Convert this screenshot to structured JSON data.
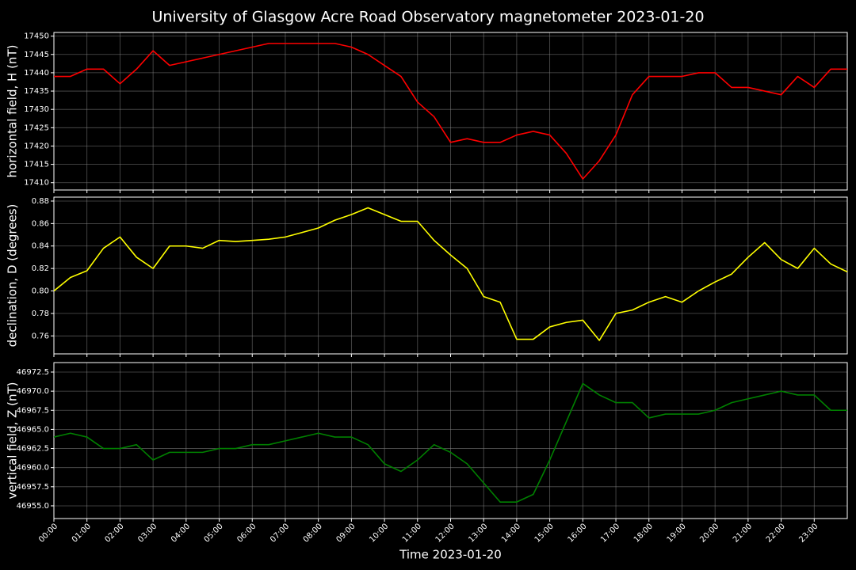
{
  "chart_data": [
    {
      "type": "line",
      "title": "University of Glasgow Acre Road Observatory magnetometer 2023-01-20",
      "ylabel": "horizontal field, H (nT)",
      "color": "#ff0000",
      "x": [
        0,
        0.5,
        1,
        1.5,
        2,
        2.5,
        3,
        3.5,
        4,
        4.5,
        5,
        5.5,
        6,
        6.5,
        7,
        7.5,
        8,
        8.5,
        9,
        9.5,
        10,
        10.5,
        11,
        11.5,
        12,
        12.5,
        13,
        13.5,
        14,
        14.5,
        15,
        15.5,
        16,
        16.5,
        17,
        17.5,
        18,
        18.5,
        19,
        19.5,
        20,
        20.5,
        21,
        21.5,
        22,
        22.5,
        23,
        23.5,
        24
      ],
      "values": [
        17439,
        17439,
        17441,
        17441,
        17437,
        17441,
        17446,
        17442,
        17443,
        17444,
        17445,
        17446,
        17447,
        17448,
        17448,
        17448,
        17448,
        17448,
        17447,
        17445,
        17442,
        17439,
        17432,
        17428,
        17421,
        17422,
        17421,
        17421,
        17423,
        17424,
        17423,
        17418,
        17411,
        17416,
        17423,
        17434,
        17439,
        17439,
        17439,
        17440,
        17440,
        17436,
        17436,
        17435,
        17434,
        17439,
        17436,
        17441,
        17441
      ],
      "xlim": [
        0,
        24
      ],
      "ylim": [
        17408,
        17451
      ],
      "yticks": [
        17410,
        17415,
        17420,
        17425,
        17430,
        17435,
        17440,
        17445,
        17450
      ],
      "grid": true
    },
    {
      "type": "line",
      "ylabel": "declination, D (degrees)",
      "color": "#ffff00",
      "x": [
        0,
        0.5,
        1,
        1.5,
        2,
        2.5,
        3,
        3.5,
        4,
        4.5,
        5,
        5.5,
        6,
        6.5,
        7,
        7.5,
        8,
        8.5,
        9,
        9.5,
        10,
        10.5,
        11,
        11.5,
        12,
        12.5,
        13,
        13.5,
        14,
        14.5,
        15,
        15.5,
        16,
        16.5,
        17,
        17.5,
        18,
        18.5,
        19,
        19.5,
        20,
        20.5,
        21,
        21.5,
        22,
        22.5,
        23,
        23.5,
        24
      ],
      "values": [
        0.8,
        0.812,
        0.818,
        0.838,
        0.848,
        0.83,
        0.82,
        0.84,
        0.84,
        0.838,
        0.845,
        0.844,
        0.845,
        0.846,
        0.848,
        0.852,
        0.856,
        0.863,
        0.868,
        0.874,
        0.868,
        0.862,
        0.862,
        0.845,
        0.832,
        0.82,
        0.795,
        0.79,
        0.757,
        0.757,
        0.768,
        0.772,
        0.774,
        0.756,
        0.78,
        0.783,
        0.79,
        0.795,
        0.79,
        0.8,
        0.808,
        0.815,
        0.83,
        0.843,
        0.828,
        0.82,
        0.838,
        0.824,
        0.817
      ],
      "xlim": [
        0,
        24
      ],
      "ylim": [
        0.744,
        0.8835
      ],
      "yticks": [
        0.76,
        0.78,
        {
          "value": 0.8,
          "label": "0.80"
        },
        0.82,
        0.84,
        0.86,
        0.88
      ],
      "grid": true
    },
    {
      "type": "line",
      "ylabel": "vertical field, Z (nT)",
      "xlabel": "Time 2023-01-20",
      "color": "#008000",
      "x": [
        0,
        0.5,
        1,
        1.5,
        2,
        2.5,
        3,
        3.5,
        4,
        4.5,
        5,
        5.5,
        6,
        6.5,
        7,
        7.5,
        8,
        8.5,
        9,
        9.5,
        10,
        10.5,
        11,
        11.5,
        12,
        12.5,
        13,
        13.5,
        14,
        14.5,
        15,
        15.5,
        16,
        16.5,
        17,
        17.5,
        18,
        18.5,
        19,
        19.5,
        20,
        20.5,
        21,
        21.5,
        22,
        22.5,
        23,
        23.5,
        24
      ],
      "values": [
        46964,
        46964.5,
        46964,
        46962.5,
        46962.5,
        46963,
        46961,
        46962,
        46962,
        46962,
        46962.5,
        46962.5,
        46963,
        46963,
        46963.5,
        46964,
        46964.5,
        46964,
        46964,
        46963,
        46960.5,
        46959.5,
        46961,
        46963,
        46962,
        46960.5,
        46958,
        46955.5,
        46955.5,
        46956.5,
        46961,
        46966,
        46971,
        46969.5,
        46968.5,
        46968.5,
        46966.5,
        46967,
        46967,
        46967,
        46967.5,
        46968.5,
        46969,
        46969.5,
        46970,
        46969.5,
        46969.5,
        46967.5,
        46967.5
      ],
      "xlim": [
        0,
        24
      ],
      "ylim": [
        46953.34,
        46973.74
      ],
      "yticks": [
        {
          "value": 46955,
          "label": "46955.0"
        },
        46957.5,
        {
          "value": 46960,
          "label": "46960.0"
        },
        46962.5,
        {
          "value": 46965,
          "label": "46965.0"
        },
        46967.5,
        {
          "value": 46970,
          "label": "46970.0"
        },
        46972.5
      ],
      "xticks": [
        {
          "value": 0,
          "label": "00:00"
        },
        {
          "value": 1,
          "label": "01:00"
        },
        {
          "value": 2,
          "label": "02:00"
        },
        {
          "value": 3,
          "label": "03:00"
        },
        {
          "value": 4,
          "label": "04:00"
        },
        {
          "value": 5,
          "label": "05:00"
        },
        {
          "value": 6,
          "label": "06:00"
        },
        {
          "value": 7,
          "label": "07:00"
        },
        {
          "value": 8,
          "label": "08:00"
        },
        {
          "value": 9,
          "label": "09:00"
        },
        {
          "value": 10,
          "label": "10:00"
        },
        {
          "value": 11,
          "label": "11:00"
        },
        {
          "value": 12,
          "label": "12:00"
        },
        {
          "value": 13,
          "label": "13:00"
        },
        {
          "value": 14,
          "label": "14:00"
        },
        {
          "value": 15,
          "label": "15:00"
        },
        {
          "value": 16,
          "label": "16:00"
        },
        {
          "value": 17,
          "label": "17:00"
        },
        {
          "value": 18,
          "label": "18:00"
        },
        {
          "value": 19,
          "label": "19:00"
        },
        {
          "value": 20,
          "label": "20:00"
        },
        {
          "value": 21,
          "label": "21:00"
        },
        {
          "value": 22,
          "label": "22:00"
        },
        {
          "value": 23,
          "label": "23:00"
        }
      ],
      "grid": true
    }
  ]
}
